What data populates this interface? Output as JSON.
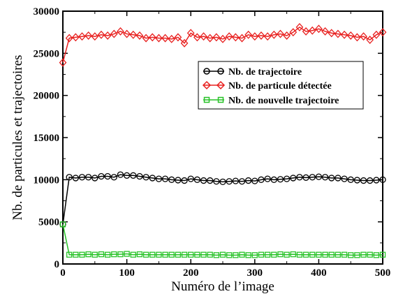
{
  "chart_data": {
    "type": "line",
    "xlabel": "Numéro de l’image",
    "ylabel": "Nb. de particules et trajectoires",
    "xlim": [
      0,
      500
    ],
    "ylim": [
      0,
      30000
    ],
    "xticks": [
      0,
      100,
      200,
      300,
      400,
      500
    ],
    "yticks": [
      0,
      5000,
      10000,
      15000,
      20000,
      25000,
      30000
    ],
    "grid": false,
    "legend_position": "top-right",
    "series": [
      {
        "name": "Nb. de trajectoire",
        "color": "#000000",
        "marker": "circle",
        "x": [
          0,
          10,
          20,
          30,
          40,
          50,
          60,
          70,
          80,
          90,
          100,
          110,
          120,
          130,
          140,
          150,
          160,
          170,
          180,
          190,
          200,
          210,
          220,
          230,
          240,
          250,
          260,
          270,
          280,
          290,
          300,
          310,
          320,
          330,
          340,
          350,
          360,
          370,
          380,
          390,
          400,
          410,
          420,
          430,
          440,
          450,
          460,
          470,
          480,
          490,
          500
        ],
        "values": [
          4700,
          10300,
          10200,
          10300,
          10300,
          10200,
          10400,
          10400,
          10300,
          10600,
          10500,
          10500,
          10400,
          10300,
          10200,
          10100,
          10100,
          10000,
          9950,
          9900,
          10100,
          10000,
          9900,
          9900,
          9800,
          9750,
          9800,
          9850,
          9800,
          9900,
          9850,
          10000,
          10100,
          10000,
          10050,
          10100,
          10200,
          10300,
          10250,
          10300,
          10350,
          10300,
          10200,
          10200,
          10100,
          10000,
          9950,
          9900,
          9900,
          9950,
          10000
        ]
      },
      {
        "name": "Nb. de particule détectée",
        "color": "#e8201f",
        "marker": "diamond",
        "x": [
          0,
          10,
          20,
          30,
          40,
          50,
          60,
          70,
          80,
          90,
          100,
          110,
          120,
          130,
          140,
          150,
          160,
          170,
          180,
          190,
          200,
          210,
          220,
          230,
          240,
          250,
          260,
          270,
          280,
          290,
          300,
          310,
          320,
          330,
          340,
          350,
          360,
          370,
          380,
          390,
          400,
          410,
          420,
          430,
          440,
          450,
          460,
          470,
          480,
          490,
          500
        ],
        "values": [
          23900,
          26800,
          26900,
          27000,
          27100,
          27000,
          27200,
          27100,
          27300,
          27600,
          27300,
          27200,
          27100,
          26800,
          26900,
          26800,
          26800,
          26700,
          26900,
          26200,
          27400,
          26900,
          27000,
          26800,
          26900,
          26700,
          27000,
          26900,
          26800,
          27200,
          27000,
          27100,
          27000,
          27200,
          27300,
          27100,
          27500,
          28100,
          27600,
          27700,
          27900,
          27600,
          27400,
          27300,
          27200,
          27100,
          26900,
          27000,
          26600,
          27200,
          27500
        ]
      },
      {
        "name": "Nb. de nouvelle trajectoire",
        "color": "#27c227",
        "marker": "square",
        "x": [
          0,
          10,
          20,
          30,
          40,
          50,
          60,
          70,
          80,
          90,
          100,
          110,
          120,
          130,
          140,
          150,
          160,
          170,
          180,
          190,
          200,
          210,
          220,
          230,
          240,
          250,
          260,
          270,
          280,
          290,
          300,
          310,
          320,
          330,
          340,
          350,
          360,
          370,
          380,
          390,
          400,
          410,
          420,
          430,
          440,
          450,
          460,
          470,
          480,
          490,
          500
        ],
        "values": [
          4700,
          1100,
          1100,
          1100,
          1150,
          1100,
          1150,
          1100,
          1150,
          1150,
          1200,
          1100,
          1150,
          1100,
          1100,
          1100,
          1100,
          1100,
          1100,
          1100,
          1100,
          1100,
          1100,
          1100,
          1050,
          1100,
          1050,
          1050,
          1100,
          1050,
          1050,
          1100,
          1100,
          1100,
          1150,
          1100,
          1150,
          1100,
          1100,
          1100,
          1100,
          1100,
          1100,
          1100,
          1100,
          1050,
          1050,
          1100,
          1100,
          1050,
          1100
        ]
      }
    ]
  }
}
